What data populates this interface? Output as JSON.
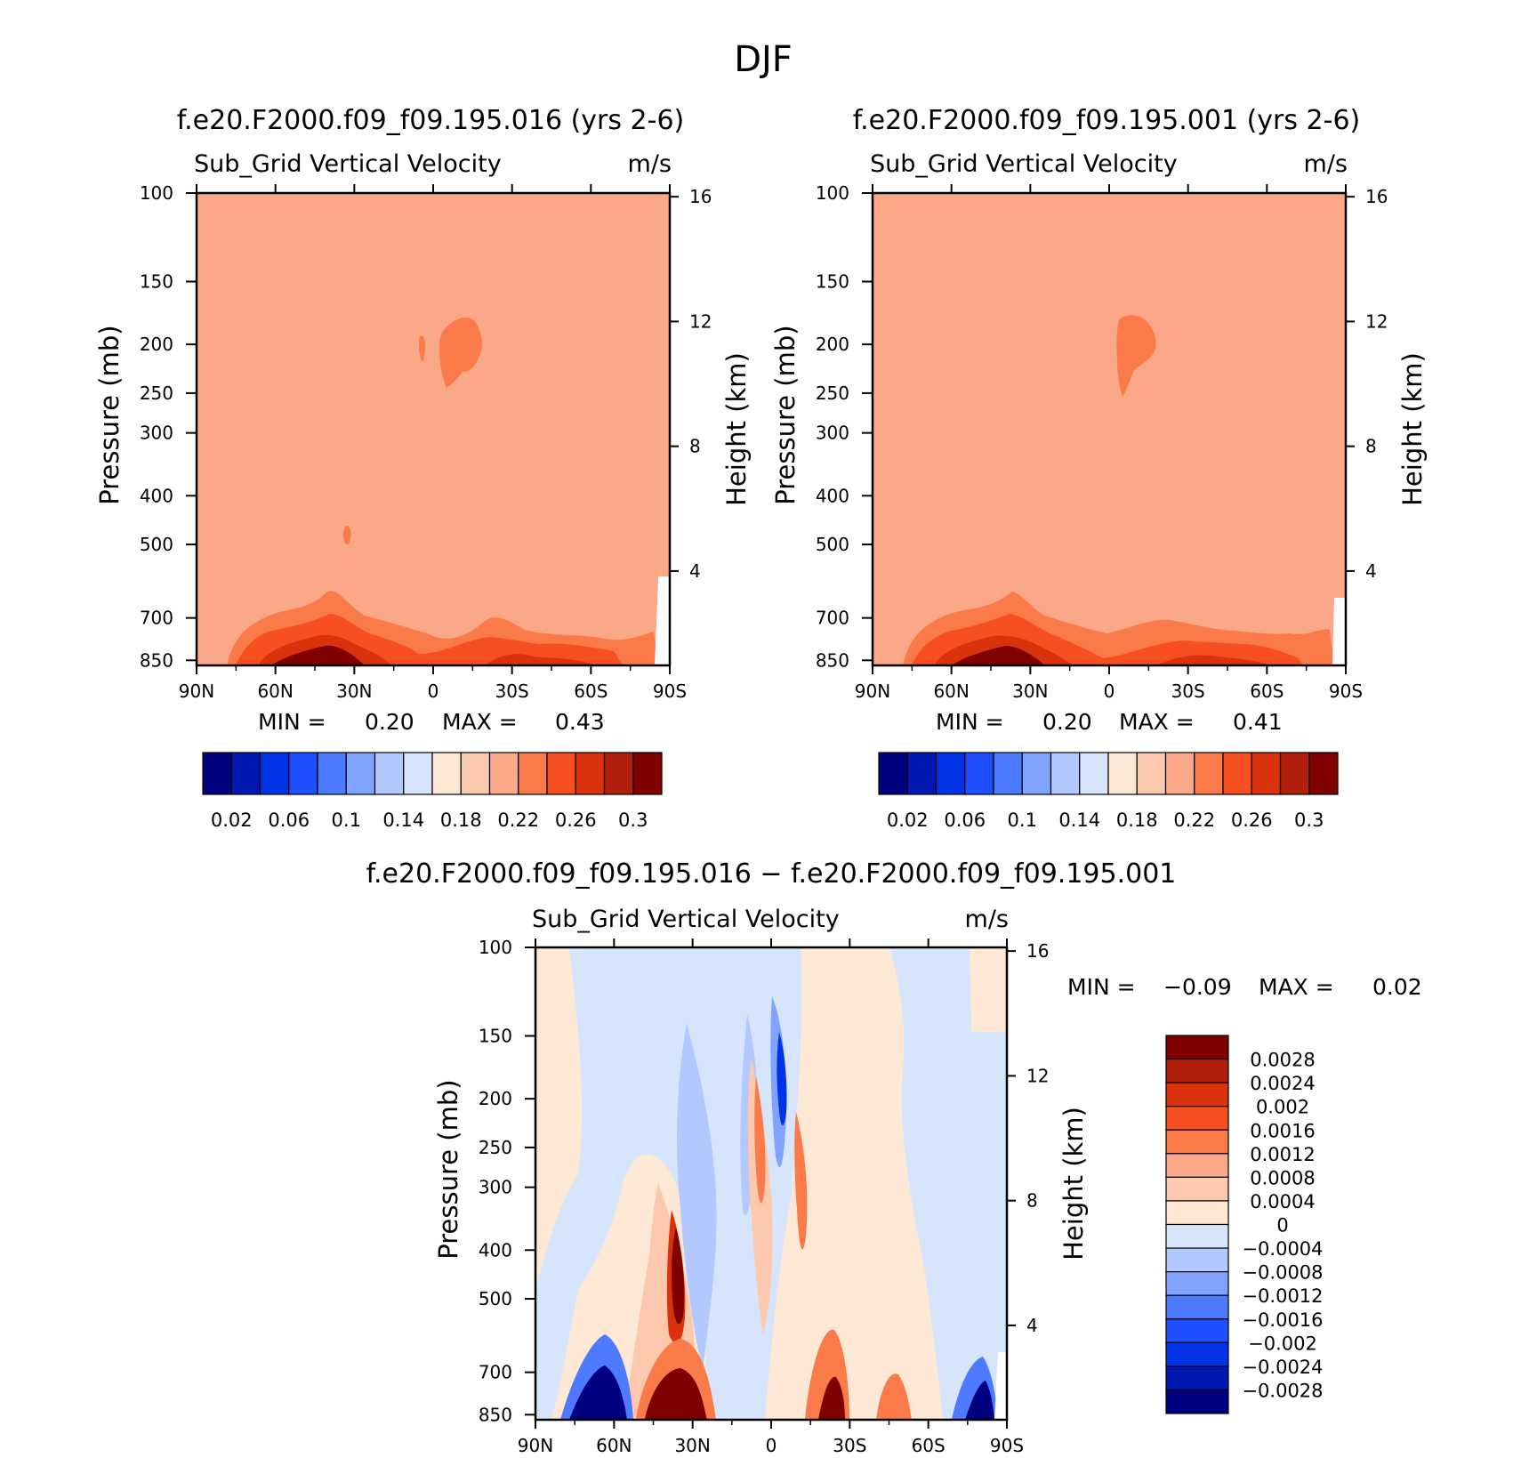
{
  "figure_title": "DJF",
  "panels": {
    "top_left": {
      "title": "f.e20.F2000.f09_f09.195.016 (yrs 2-6)",
      "variable": "Sub_Grid Vertical Velocity",
      "units": "m/s",
      "stats": {
        "min_label": "MIN =",
        "min_value": "0.20",
        "max_label": "MAX =",
        "max_value": "0.43"
      }
    },
    "top_right": {
      "title": "f.e20.F2000.f09_f09.195.001 (yrs 2-6)",
      "variable": "Sub_Grid Vertical Velocity",
      "units": "m/s",
      "stats": {
        "min_label": "MIN =",
        "min_value": "0.20",
        "max_label": "MAX =",
        "max_value": "0.41"
      }
    },
    "bottom": {
      "title": "f.e20.F2000.f09_f09.195.016 − f.e20.F2000.f09_f09.195.001",
      "variable": "Sub_Grid Vertical Velocity",
      "units": "m/s",
      "stats": {
        "min_label": "MIN =",
        "min_value": "−0.09",
        "max_label": "MAX =",
        "max_value": "0.02"
      }
    }
  },
  "colorbars": {
    "abs_colors": [
      "#000080",
      "#0019b3",
      "#0033e6",
      "#1f4fff",
      "#4d7aff",
      "#80a3ff",
      "#b3c8ff",
      "#d6e5fb",
      "#fde8d6",
      "#fcc9ae",
      "#fba888",
      "#fa7a4a",
      "#f74f1f",
      "#d9320d",
      "#b31f0d",
      "#800000"
    ],
    "abs_labels": [
      "0.02",
      "0.06",
      "0.1",
      "0.14",
      "0.18",
      "0.22",
      "0.26",
      "0.3"
    ],
    "diff_colors": [
      "#800000",
      "#b31f0d",
      "#d9320d",
      "#f74f1f",
      "#fa7a4a",
      "#fba888",
      "#fcc9ae",
      "#fde8d6",
      "#d6e5fb",
      "#b3c8ff",
      "#80a3ff",
      "#4d7aff",
      "#1f4fff",
      "#0033e6",
      "#0019b3",
      "#000080"
    ],
    "diff_labels": [
      "0.0028",
      "0.0024",
      "0.002",
      "0.0016",
      "0.0012",
      "0.0008",
      "0.0004",
      "0",
      "−0.0004",
      "−0.0008",
      "−0.0012",
      "−0.0016",
      "−0.002",
      "−0.0024",
      "−0.0028"
    ]
  },
  "chart_data": [
    {
      "type": "heatmap",
      "title": "f.e20.F2000.f09_f09.195.016 (yrs 2-6)",
      "subtitle": "Sub_Grid Vertical Velocity",
      "units": "m/s",
      "xlabel": "",
      "ylabel": "Pressure (mb)",
      "y2label": "Height (km)",
      "x_ticks": [
        "90N",
        "60N",
        "30N",
        "0",
        "30S",
        "60S",
        "90S"
      ],
      "y_ticks": [
        "100",
        "150",
        "200",
        "250",
        "300",
        "400",
        "500",
        "700",
        "850"
      ],
      "y2_ticks": [
        "4",
        "8",
        "12",
        "16"
      ],
      "xlim": [
        -90,
        90
      ],
      "ylim": [
        870,
        100
      ],
      "y_scale": "log",
      "background_value": 0.2,
      "min": 0.2,
      "max": 0.43,
      "features": [
        {
          "lat": 40,
          "p": 862,
          "value": 0.3
        },
        {
          "lat": 60,
          "p": 862,
          "value": 0.28
        },
        {
          "lat": -25,
          "p": 862,
          "value": 0.24
        },
        {
          "lat": -55,
          "p": 862,
          "value": 0.22
        },
        {
          "lat": -8,
          "p": 205,
          "value": 0.22
        },
        {
          "lat": 32,
          "p": 495,
          "value": 0.22
        }
      ]
    },
    {
      "type": "heatmap",
      "title": "f.e20.F2000.f09_f09.195.001 (yrs 2-6)",
      "subtitle": "Sub_Grid Vertical Velocity",
      "units": "m/s",
      "xlabel": "",
      "ylabel": "Pressure (mb)",
      "y2label": "Height (km)",
      "x_ticks": [
        "90N",
        "60N",
        "30N",
        "0",
        "30S",
        "60S",
        "90S"
      ],
      "y_ticks": [
        "100",
        "150",
        "200",
        "250",
        "300",
        "400",
        "500",
        "700",
        "850"
      ],
      "y2_ticks": [
        "4",
        "8",
        "12",
        "16"
      ],
      "xlim": [
        -90,
        90
      ],
      "ylim": [
        870,
        100
      ],
      "y_scale": "log",
      "background_value": 0.2,
      "min": 0.2,
      "max": 0.41,
      "features": [
        {
          "lat": 40,
          "p": 862,
          "value": 0.3
        },
        {
          "lat": 60,
          "p": 862,
          "value": 0.28
        },
        {
          "lat": -25,
          "p": 862,
          "value": 0.24
        },
        {
          "lat": -55,
          "p": 862,
          "value": 0.22
        },
        {
          "lat": -8,
          "p": 205,
          "value": 0.22
        }
      ]
    },
    {
      "type": "heatmap",
      "title": "f.e20.F2000.f09_f09.195.016 − f.e20.F2000.f09_f09.195.001",
      "subtitle": "Sub_Grid Vertical Velocity",
      "units": "m/s",
      "xlabel": "",
      "ylabel": "Pressure (mb)",
      "y2label": "Height (km)",
      "x_ticks": [
        "90N",
        "60N",
        "30N",
        "0",
        "30S",
        "60S",
        "90S"
      ],
      "y_ticks": [
        "100",
        "150",
        "200",
        "250",
        "300",
        "400",
        "500",
        "700",
        "850"
      ],
      "y2_ticks": [
        "4",
        "8",
        "12",
        "16"
      ],
      "xlim": [
        -90,
        90
      ],
      "ylim": [
        870,
        100
      ],
      "y_scale": "log",
      "background_value": 0.0,
      "min": -0.09,
      "max": 0.02,
      "features": [
        {
          "lat": 63,
          "p": 830,
          "value": -0.003
        },
        {
          "lat": 40,
          "p": 820,
          "value": 0.003
        },
        {
          "lat": 34,
          "p": 480,
          "value": 0.003
        },
        {
          "lat": 5,
          "p": 250,
          "value": 0.0016
        },
        {
          "lat": -3,
          "p": 190,
          "value": -0.002
        },
        {
          "lat": -12,
          "p": 360,
          "value": 0.0012
        },
        {
          "lat": -22,
          "p": 800,
          "value": 0.003
        },
        {
          "lat": -45,
          "p": 840,
          "value": 0.002
        },
        {
          "lat": -75,
          "p": 840,
          "value": -0.003
        },
        {
          "lat": 45,
          "p": 300,
          "value": 0.0004
        },
        {
          "lat": 20,
          "p": 300,
          "value": -0.0008
        },
        {
          "lat": -60,
          "p": 250,
          "value": -0.0004
        }
      ]
    }
  ]
}
